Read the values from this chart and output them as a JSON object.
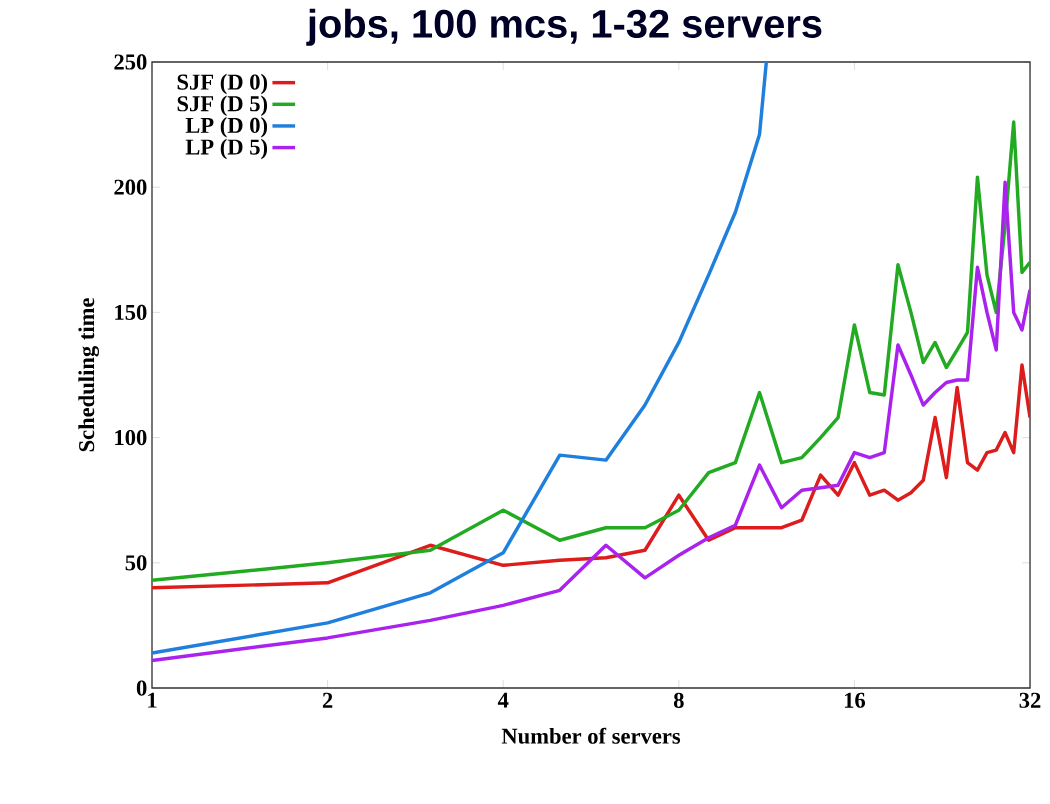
{
  "chart_data": {
    "type": "line",
    "title": "jobs, 100 mcs, 1-32 servers",
    "xlabel": "Number of servers",
    "ylabel": "Scheduling time",
    "x": [
      1,
      2,
      3,
      4,
      5,
      6,
      7,
      8,
      9,
      10,
      11,
      12,
      13,
      14,
      15,
      16,
      17,
      18,
      19,
      20,
      21,
      22,
      23,
      24,
      25,
      26,
      27,
      28,
      29,
      30,
      31,
      32
    ],
    "series": [
      {
        "name": "SJF (D 0)",
        "color": "#dd1c1c",
        "values": [
          40,
          42,
          57,
          49,
          51,
          52,
          55,
          77,
          59,
          64,
          64,
          64,
          67,
          85,
          77,
          90,
          77,
          79,
          75,
          78,
          83,
          108,
          84,
          120,
          90,
          87,
          94,
          95,
          102,
          94,
          129,
          108
        ]
      },
      {
        "name": "SJF (D 5)",
        "color": "#22aa22",
        "values": [
          43,
          50,
          55,
          71,
          59,
          64,
          64,
          71,
          86,
          90,
          118,
          90,
          92,
          100,
          108,
          145,
          118,
          117,
          169,
          150,
          130,
          138,
          128,
          135,
          142,
          204,
          165,
          150,
          185,
          226,
          166,
          170
        ]
      },
      {
        "name": "LP (D 0)",
        "color": "#1f7fdd",
        "x": [
          1,
          2,
          3,
          4,
          5,
          6,
          7,
          8,
          9,
          10,
          11,
          11.3
        ],
        "values": [
          14,
          26,
          38,
          54,
          93,
          91,
          113,
          138,
          165,
          190,
          221,
          250
        ]
      },
      {
        "name": "LP (D 5)",
        "color": "#aa22ee",
        "values": [
          11,
          20,
          27,
          33,
          39,
          57,
          44,
          53,
          60,
          65,
          89,
          72,
          79,
          80,
          81,
          94,
          92,
          94,
          137,
          125,
          113,
          118,
          122,
          123,
          123,
          168,
          150,
          135,
          202,
          150,
          143,
          159
        ]
      }
    ],
    "log": "x",
    "xlim": [
      1,
      32
    ],
    "xticks": [
      1,
      2,
      4,
      8,
      16,
      32
    ],
    "ylim": [
      0,
      250
    ],
    "yticks": [
      0,
      50,
      100,
      150,
      200,
      250
    ],
    "legend": "top left",
    "line_style": "solid"
  }
}
